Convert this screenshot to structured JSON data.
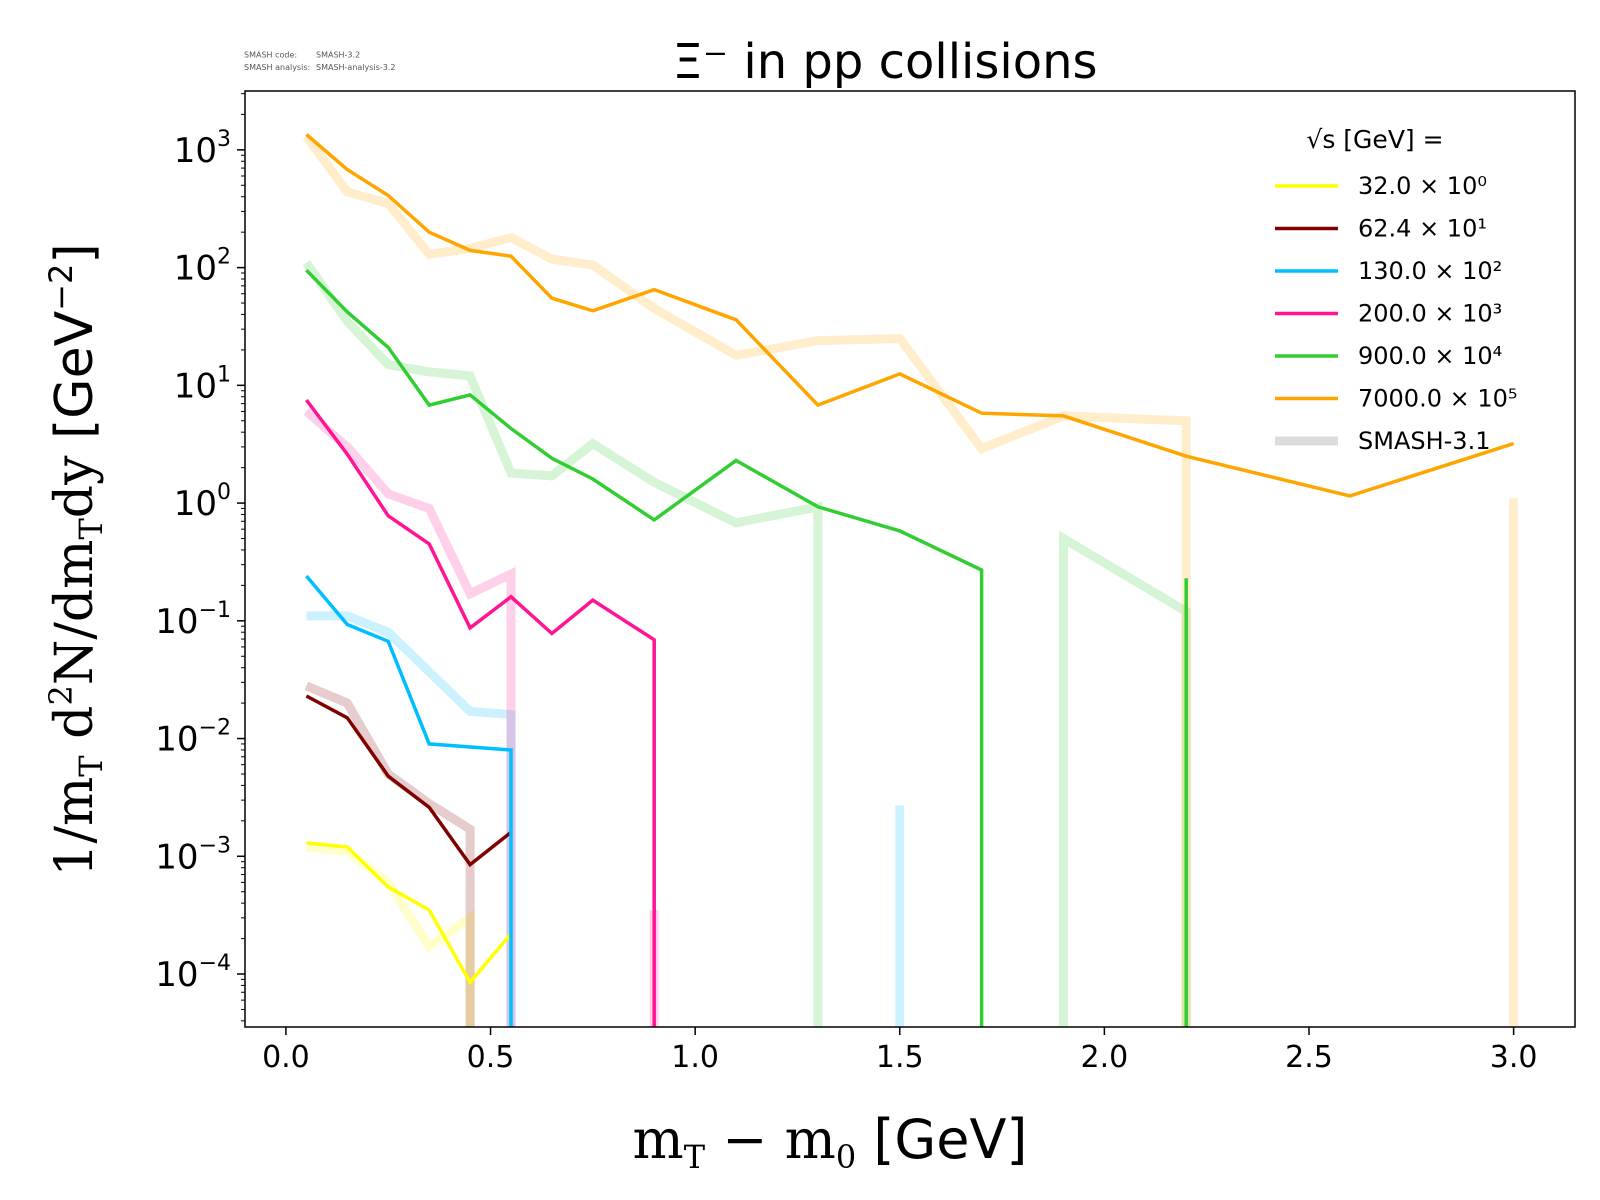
{
  "chart_data": {
    "type": "line",
    "title": "Ξ⁻ in pp collisions",
    "version_info": {
      "line1_label": "SMASH code:",
      "line1_value": "SMASH-3.2",
      "line2_label": "SMASH analysis:",
      "line2_value": "SMASH-analysis-3.2"
    },
    "xlabel": "m_T – m_0 [GeV]",
    "ylabel": "1/m_T d²N/dm_T dy [GeV⁻²]",
    "xlim": [
      -0.1,
      3.15
    ],
    "ylim_log10": [
      -4.45,
      3.5
    ],
    "y_scale": "log",
    "x_ticks": [
      "0.0",
      "0.5",
      "1.0",
      "1.5",
      "2.0",
      "2.5",
      "3.0"
    ],
    "y_ticks": [
      -4,
      -3,
      -2,
      -1,
      0,
      1,
      2,
      3
    ],
    "legend": {
      "title": "√s [GeV] =",
      "placement": "top-right"
    },
    "series": [
      {
        "name": "32.0 × 10⁰",
        "color": "#ffff00",
        "values": [
          [
            0.05,
            0.0013
          ],
          [
            0.15,
            0.0012
          ],
          [
            0.25,
            0.00055
          ],
          [
            0.35,
            0.00035
          ],
          [
            0.45,
            8.5e-05
          ],
          [
            0.55,
            0.00022
          ]
        ],
        "reference": [
          [
            0.05,
            0.0012
          ],
          [
            0.15,
            0.0011
          ],
          [
            0.25,
            0.0006
          ],
          [
            0.35,
            0.00017
          ],
          [
            0.45,
            0.0003
          ],
          [
            0.45,
            3e-05
          ]
        ]
      },
      {
        "name": "62.4 × 10¹",
        "color": "#800000",
        "values": [
          [
            0.05,
            0.023
          ],
          [
            0.15,
            0.015
          ],
          [
            0.25,
            0.0048
          ],
          [
            0.35,
            0.0026
          ],
          [
            0.45,
            0.00085
          ],
          [
            0.55,
            0.0016
          ]
        ],
        "reference": [
          [
            0.05,
            0.028
          ],
          [
            0.15,
            0.02
          ],
          [
            0.25,
            0.005
          ],
          [
            0.35,
            0.0028
          ],
          [
            0.45,
            0.0017
          ],
          [
            0.45,
            3e-05
          ]
        ]
      },
      {
        "name": "130.0 × 10²",
        "color": "#00bfff",
        "values": [
          [
            0.05,
            0.24
          ],
          [
            0.15,
            0.093
          ],
          [
            0.25,
            0.067
          ],
          [
            0.35,
            0.009
          ],
          [
            0.55,
            0.008
          ],
          [
            0.55,
            3e-05
          ]
        ],
        "reference": [
          [
            0.05,
            0.11
          ],
          [
            0.15,
            0.11
          ],
          [
            0.25,
            0.08
          ],
          [
            0.45,
            0.017
          ],
          [
            0.55,
            0.016
          ],
          [
            0.55,
            3e-05
          ],
          [
            1.5,
            3e-05
          ],
          [
            1.5,
            0.0027
          ]
        ]
      },
      {
        "name": "200.0 × 10³",
        "color": "#ff1493",
        "values": [
          [
            0.05,
            7.5
          ],
          [
            0.15,
            2.6
          ],
          [
            0.25,
            0.78
          ],
          [
            0.35,
            0.45
          ],
          [
            0.45,
            0.087
          ],
          [
            0.55,
            0.16
          ],
          [
            0.65,
            0.078
          ],
          [
            0.75,
            0.15
          ],
          [
            0.9,
            0.069
          ],
          [
            0.9,
            3e-05
          ]
        ],
        "reference": [
          [
            0.05,
            6
          ],
          [
            0.15,
            3
          ],
          [
            0.25,
            1.2
          ],
          [
            0.35,
            0.9
          ],
          [
            0.45,
            0.17
          ],
          [
            0.55,
            0.25
          ],
          [
            0.55,
            3e-05
          ],
          [
            0.9,
            3e-05
          ],
          [
            0.9,
            0.00035
          ]
        ]
      },
      {
        "name": "900.0 × 10⁴",
        "color": "#32cd32",
        "values": [
          [
            0.05,
            95
          ],
          [
            0.15,
            42
          ],
          [
            0.25,
            21
          ],
          [
            0.35,
            6.8
          ],
          [
            0.45,
            8.3
          ],
          [
            0.55,
            4.3
          ],
          [
            0.65,
            2.4
          ],
          [
            0.75,
            1.6
          ],
          [
            0.9,
            0.72
          ],
          [
            1.1,
            2.3
          ],
          [
            1.3,
            0.93
          ],
          [
            1.5,
            0.58
          ],
          [
            1.7,
            0.27
          ],
          [
            1.7,
            3e-05
          ],
          [
            2.2,
            3e-05
          ],
          [
            2.2,
            0.23
          ]
        ],
        "reference": [
          [
            0.05,
            110
          ],
          [
            0.15,
            35
          ],
          [
            0.25,
            15
          ],
          [
            0.35,
            13
          ],
          [
            0.45,
            12
          ],
          [
            0.55,
            1.8
          ],
          [
            0.65,
            1.7
          ],
          [
            0.75,
            3.2
          ],
          [
            0.9,
            1.5
          ],
          [
            1.1,
            0.68
          ],
          [
            1.3,
            0.93
          ],
          [
            1.3,
            3e-05
          ],
          [
            1.9,
            3e-05
          ],
          [
            1.9,
            0.5
          ],
          [
            2.2,
            0.12
          ],
          [
            2.2,
            3e-05
          ]
        ]
      },
      {
        "name": "7000.0 × 10⁵",
        "color": "#ffa500",
        "values": [
          [
            0.05,
            1350
          ],
          [
            0.15,
            680
          ],
          [
            0.25,
            410
          ],
          [
            0.35,
            200
          ],
          [
            0.45,
            140
          ],
          [
            0.55,
            125
          ],
          [
            0.65,
            55
          ],
          [
            0.75,
            43
          ],
          [
            0.9,
            65
          ],
          [
            1.1,
            36
          ],
          [
            1.3,
            6.8
          ],
          [
            1.5,
            12.5
          ],
          [
            1.7,
            5.8
          ],
          [
            1.9,
            5.5
          ],
          [
            2.2,
            2.5
          ],
          [
            2.6,
            1.15
          ],
          [
            3.0,
            3.2
          ]
        ],
        "reference": [
          [
            0.05,
            1300
          ],
          [
            0.15,
            440
          ],
          [
            0.25,
            350
          ],
          [
            0.35,
            130
          ],
          [
            0.45,
            145
          ],
          [
            0.55,
            180
          ],
          [
            0.65,
            118
          ],
          [
            0.75,
            105
          ],
          [
            0.9,
            45
          ],
          [
            1.1,
            18
          ],
          [
            1.3,
            24
          ],
          [
            1.5,
            25
          ],
          [
            1.7,
            2.9
          ],
          [
            1.9,
            5.5
          ],
          [
            2.2,
            5.0
          ],
          [
            2.2,
            3e-05
          ],
          [
            3.0,
            3e-05
          ],
          [
            3.0,
            1.1
          ]
        ]
      }
    ],
    "reference_series": {
      "name": "SMASH-3.1",
      "legend_color": "#dcdcdc",
      "line_width": 9,
      "opacity": 0.2
    }
  }
}
